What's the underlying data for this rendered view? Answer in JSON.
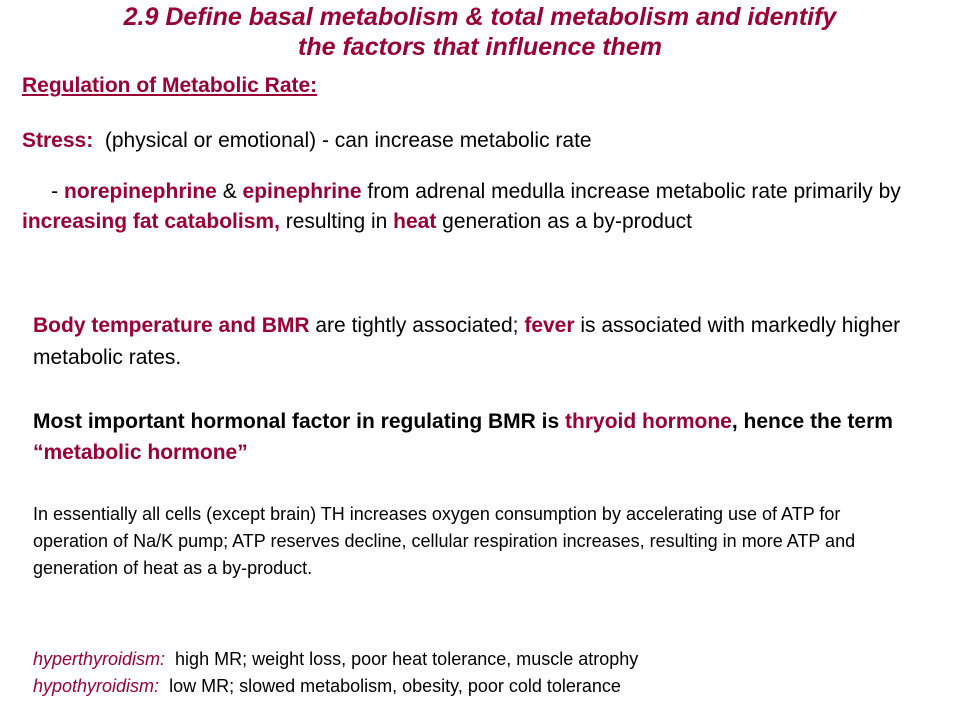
{
  "slide": {
    "title_line1": "2.9  Define basal metabolism & total metabolism and identify",
    "title_line2": "the factors that influence them",
    "subtitle": "Regulation of Metabolic Rate:",
    "stress": {
      "label": "Stress:",
      "text": "  (physical or emotional) - can increase metabolic rate"
    },
    "stress_detail": {
      "p1": "     - ",
      "norepinephrine": "norepinephrine",
      "amp": " & ",
      "epinephrine": "epinephrine",
      "p2": " from adrenal medulla increase metabolic rate primarily by ",
      "fat_catabolism": "increasing fat catabolism,",
      "p3": " resulting in ",
      "heat": "heat",
      "p4": " generation as a by-product"
    },
    "body_temp": {
      "lead": "Body temperature and BMR",
      "p1": " are tightly associated; ",
      "fever": "fever",
      "p2": " is associated with markedly higher metabolic rates."
    },
    "hormonal": {
      "p1": "Most important hormonal factor in regulating BMR is ",
      "thyroid_hormone": "thryoid hormone",
      "comma": ",",
      "p2": " hence the term ",
      "metabolic_hormone": "“metabolic hormone”"
    },
    "th_paragraph": "In essentially all cells (except brain) TH increases oxygen consumption  by accelerating use of ATP for operation of Na/K pump; ATP reserves decline, cellular respiration increases, resulting in more ATP and generation of heat as a by-product.",
    "hyperthyroidism": {
      "term": "hyperthyroidism:",
      "text": "  high MR; weight loss, poor heat tolerance, muscle atrophy"
    },
    "hypothyroidism": {
      "term": "hypothyroidism:",
      "text": "  low MR; slowed metabolism, obesity, poor cold tolerance"
    }
  }
}
